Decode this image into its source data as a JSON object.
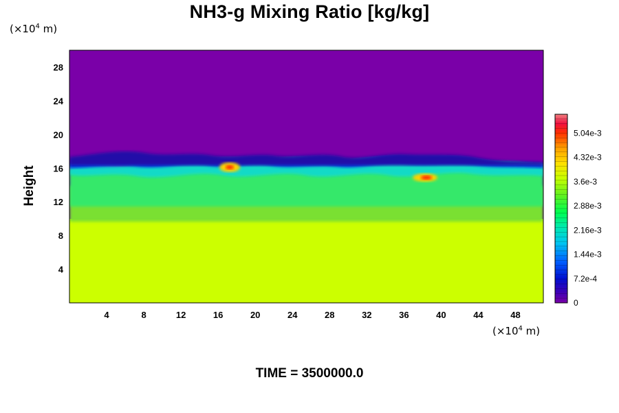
{
  "chart_data": {
    "type": "heatmap",
    "title": "NH3-g Mixing Ratio [kg/kg]",
    "ylabel": "Height",
    "x_unit": {
      "prefix": "(×10",
      "exp": "4",
      "suffix": " m)"
    },
    "y_unit": {
      "prefix": "(×10",
      "exp": "4",
      "suffix": " m)"
    },
    "xlim": [
      0,
      51
    ],
    "ylim": [
      0,
      30
    ],
    "x_ticks": [
      4,
      8,
      12,
      16,
      20,
      24,
      28,
      32,
      36,
      40,
      44,
      48
    ],
    "y_ticks": [
      4,
      8,
      12,
      16,
      20,
      24,
      28
    ],
    "colorbar": {
      "range": [
        0,
        0.0056
      ],
      "tick_values": [
        0,
        0.00072,
        0.00144,
        0.00216,
        0.00288,
        0.0036,
        0.00432,
        0.00504
      ],
      "tick_labels": [
        "0",
        "7.2e-4",
        "1.44e-3",
        "2.16e-3",
        "2.88e-3",
        "3.6e-3",
        "4.32e-3",
        "5.04e-3"
      ]
    },
    "field_summary": {
      "upper_layer": {
        "height_range": [
          17.5,
          30
        ],
        "value": 0
      },
      "lower_layer": {
        "height_range": [
          0,
          10
        ],
        "value": 0.0039
      },
      "mixed_layer": {
        "height_range": [
          10,
          17.5
        ],
        "value_range": [
          0.0008,
          0.0031
        ]
      },
      "hotspots": [
        {
          "x": 17.5,
          "y": 16.0,
          "value": 0.005
        },
        {
          "x": 38.5,
          "y": 14.8,
          "value": 0.0052
        }
      ]
    },
    "footer": {
      "label": "TIME = ",
      "value": "3500000.0"
    }
  }
}
